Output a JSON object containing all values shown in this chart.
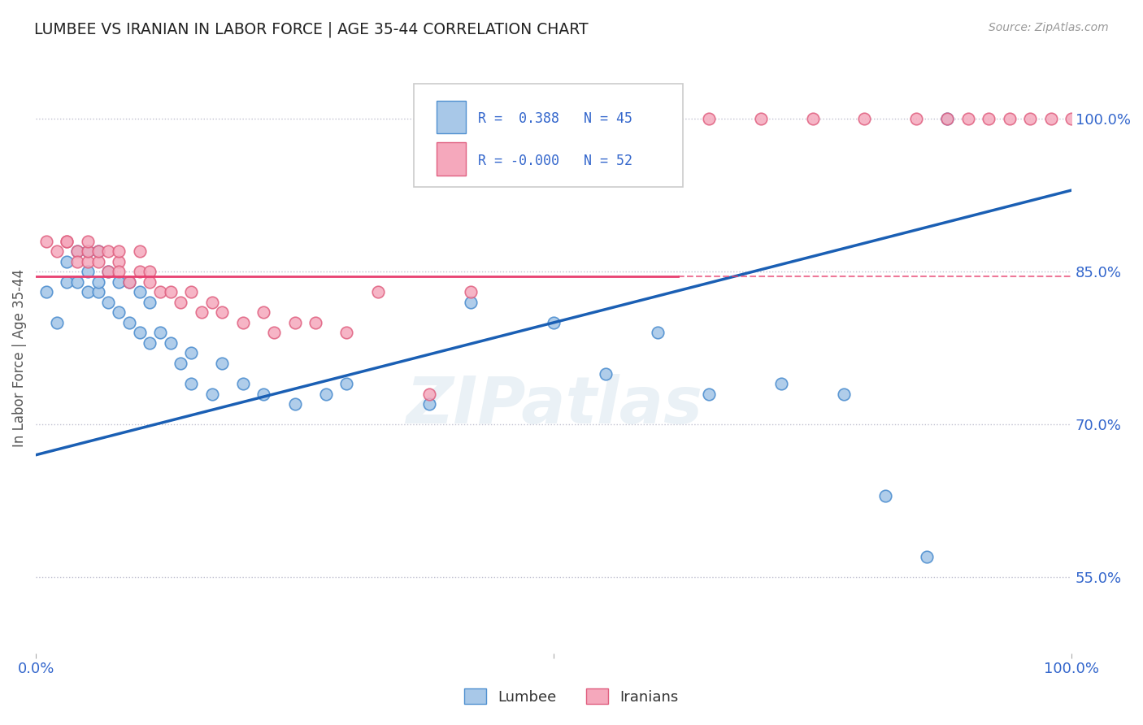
{
  "title": "LUMBEE VS IRANIAN IN LABOR FORCE | AGE 35-44 CORRELATION CHART",
  "source_text": "Source: ZipAtlas.com",
  "ylabel": "In Labor Force | Age 35-44",
  "legend_labels": [
    "Lumbee",
    "Iranians"
  ],
  "r_lumbee": 0.388,
  "n_lumbee": 45,
  "r_iranian": -0.0,
  "n_iranian": 52,
  "lumbee_color": "#a8c8e8",
  "iranian_color": "#f5a8bc",
  "lumbee_edge_color": "#5090d0",
  "iranian_edge_color": "#e06080",
  "lumbee_line_color": "#1a5fb4",
  "iranian_line_color": "#e84070",
  "grid_color": "#c0c0d0",
  "background_color": "#ffffff",
  "watermark": "ZIPatlas",
  "ytick_labels": [
    "55.0%",
    "70.0%",
    "85.0%",
    "100.0%"
  ],
  "ytick_values": [
    0.55,
    0.7,
    0.85,
    1.0
  ],
  "xlim": [
    0.0,
    1.0
  ],
  "ylim": [
    0.475,
    1.055
  ],
  "lumbee_x": [
    0.01,
    0.02,
    0.03,
    0.03,
    0.04,
    0.04,
    0.05,
    0.05,
    0.05,
    0.06,
    0.06,
    0.06,
    0.07,
    0.07,
    0.08,
    0.08,
    0.09,
    0.09,
    0.1,
    0.1,
    0.11,
    0.11,
    0.12,
    0.13,
    0.14,
    0.15,
    0.15,
    0.17,
    0.18,
    0.2,
    0.22,
    0.25,
    0.28,
    0.3,
    0.38,
    0.42,
    0.5,
    0.55,
    0.6,
    0.65,
    0.72,
    0.78,
    0.82,
    0.86,
    0.88
  ],
  "lumbee_y": [
    0.83,
    0.8,
    0.86,
    0.84,
    0.84,
    0.87,
    0.83,
    0.85,
    0.87,
    0.83,
    0.84,
    0.87,
    0.82,
    0.85,
    0.81,
    0.84,
    0.8,
    0.84,
    0.79,
    0.83,
    0.78,
    0.82,
    0.79,
    0.78,
    0.76,
    0.74,
    0.77,
    0.73,
    0.76,
    0.74,
    0.73,
    0.72,
    0.73,
    0.74,
    0.72,
    0.82,
    0.8,
    0.75,
    0.79,
    0.73,
    0.74,
    0.73,
    0.63,
    0.57,
    1.0
  ],
  "iranian_x": [
    0.01,
    0.02,
    0.03,
    0.03,
    0.04,
    0.04,
    0.05,
    0.05,
    0.05,
    0.06,
    0.06,
    0.07,
    0.07,
    0.08,
    0.08,
    0.08,
    0.09,
    0.1,
    0.1,
    0.11,
    0.11,
    0.12,
    0.13,
    0.14,
    0.15,
    0.16,
    0.17,
    0.18,
    0.2,
    0.22,
    0.23,
    0.25,
    0.27,
    0.3,
    0.33,
    0.38,
    0.42,
    0.5,
    0.55,
    0.6,
    0.65,
    0.7,
    0.75,
    0.8,
    0.85,
    0.88,
    0.9,
    0.92,
    0.94,
    0.96,
    0.98,
    1.0
  ],
  "iranian_y": [
    0.88,
    0.87,
    0.88,
    0.88,
    0.87,
    0.86,
    0.86,
    0.87,
    0.88,
    0.86,
    0.87,
    0.85,
    0.87,
    0.86,
    0.85,
    0.87,
    0.84,
    0.85,
    0.87,
    0.85,
    0.84,
    0.83,
    0.83,
    0.82,
    0.83,
    0.81,
    0.82,
    0.81,
    0.8,
    0.81,
    0.79,
    0.8,
    0.8,
    0.79,
    0.83,
    0.73,
    0.83,
    1.0,
    1.0,
    1.0,
    1.0,
    1.0,
    1.0,
    1.0,
    1.0,
    1.0,
    1.0,
    1.0,
    1.0,
    1.0,
    1.0,
    1.0
  ],
  "blue_line_x0": 0.0,
  "blue_line_y0": 0.67,
  "blue_line_x1": 1.0,
  "blue_line_y1": 0.93,
  "pink_line_x0": 0.0,
  "pink_line_x1": 0.62,
  "pink_line_y": 0.845
}
